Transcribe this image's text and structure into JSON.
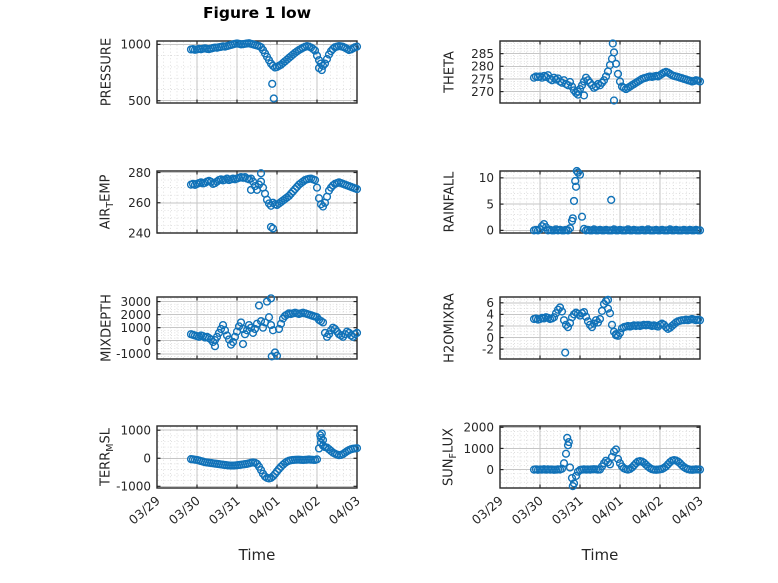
{
  "figure": {
    "title": "Figure 1 low",
    "xlabel": "Time",
    "marker_color": "#1172b8",
    "frame_color": "#262626",
    "text_color": "#262626",
    "grid_major_color": "#c6c6c6",
    "grid_minor_color": "#d2d2d2",
    "background": "#ffffff",
    "x_minor_per_day": 6
  },
  "x_axis": {
    "tick_labels": [
      "03/29",
      "03/30",
      "03/31",
      "04/01",
      "04/02",
      "04/03"
    ],
    "range_days": [
      0,
      5
    ]
  },
  "chart_data": [
    {
      "id": "pressure",
      "type": "scatter",
      "ylabel": "PRESSURE",
      "ylabel_parts": [
        {
          "text": "PRESSURE",
          "sub": false
        }
      ],
      "ylim": [
        480,
        1030
      ],
      "yticks": [
        500,
        1000
      ],
      "y_minor_step": 100,
      "x_start": 0.85,
      "x_step": 0.05,
      "y": [
        955,
        958,
        952,
        956,
        960,
        957,
        962,
        965,
        960,
        958,
        963,
        968,
        972,
        970,
        975,
        978,
        982,
        980,
        985,
        990,
        995,
        1000,
        1005,
        1008,
        1005,
        1000,
        1002,
        1005,
        1008,
        1010,
        1005,
        1000,
        995,
        990,
        985,
        975,
        950,
        920,
        890,
        860,
        830,
        810,
        795,
        800,
        810,
        820,
        835,
        850,
        865,
        880,
        895,
        910,
        925,
        938,
        950,
        960,
        970,
        978,
        985,
        980,
        972,
        960,
        945,
        900,
        860,
        830,
        810,
        830,
        870,
        910,
        940,
        960,
        975,
        980,
        985,
        982,
        978,
        970,
        960,
        950,
        955,
        965,
        975,
        980
      ],
      "extra_points": [
        [
          2.88,
          650
        ],
        [
          2.92,
          520
        ],
        [
          4.05,
          790
        ],
        [
          4.12,
          772
        ]
      ]
    },
    {
      "id": "theta",
      "type": "scatter",
      "ylabel": "THETA",
      "ylabel_parts": [
        {
          "text": "THETA",
          "sub": false
        }
      ],
      "ylim": [
        265.5,
        290
      ],
      "yticks": [
        270,
        275,
        280,
        285
      ],
      "y_minor_step": 1,
      "x_start": 0.85,
      "x_step": 0.05,
      "y": [
        275.5,
        276,
        275.8,
        276,
        275.5,
        276.2,
        275.8,
        276.5,
        275,
        274.5,
        275.5,
        274.8,
        275.2,
        274,
        273.5,
        274.5,
        273,
        272.5,
        273.8,
        272,
        270.5,
        269.5,
        270,
        271,
        272.5,
        274,
        275.5,
        274.5,
        273.5,
        272.5,
        271.5,
        272,
        273,
        272.5,
        273.5,
        274.5,
        276,
        278,
        280.5,
        283,
        285.5,
        281,
        277,
        274,
        272,
        271.5,
        271,
        271.5,
        272,
        272.5,
        273,
        273.5,
        274,
        274.5,
        275,
        275.3,
        275.5,
        275.8,
        276,
        275.8,
        276,
        276.2,
        276,
        276.5,
        277,
        277.5,
        277.8,
        277.5,
        277,
        276.5,
        276.2,
        276,
        275.8,
        275.5,
        275.3,
        275,
        274.8,
        274.5,
        274.3,
        274,
        274.2,
        274.5,
        274.3,
        274
      ],
      "extra_points": [
        [
          2.82,
          289
        ],
        [
          2.85,
          266.5
        ],
        [
          2.1,
          268.5
        ],
        [
          1.95,
          268.8
        ]
      ]
    },
    {
      "id": "air-temp",
      "type": "scatter",
      "ylabel": "AIR_TEMP",
      "ylabel_parts": [
        {
          "text": "AIR",
          "sub": false
        },
        {
          "text": "T",
          "sub": true
        },
        {
          "text": "EMP",
          "sub": false
        }
      ],
      "ylim": [
        240,
        281
      ],
      "yticks": [
        240,
        260,
        280
      ],
      "y_minor_step": 5,
      "x_start": 0.85,
      "x_step": 0.05,
      "y": [
        272,
        272.5,
        271.8,
        272.5,
        273,
        273.5,
        272.8,
        273.2,
        274,
        274.5,
        273.8,
        272.5,
        273,
        274,
        275,
        275.5,
        274.8,
        275.2,
        276,
        275,
        275.5,
        276,
        275.5,
        276,
        276.5,
        277,
        276.5,
        277,
        276,
        275.5,
        276,
        274,
        271,
        268.5,
        272,
        274,
        270,
        266,
        262,
        259.5,
        258,
        260,
        259,
        258.5,
        259.5,
        260.5,
        261.5,
        262.5,
        263.5,
        264.5,
        266,
        267.5,
        269,
        270.5,
        272,
        273,
        274,
        275,
        275.5,
        275.8,
        276,
        275.5,
        275,
        270,
        263,
        259,
        257.5,
        260,
        264,
        268,
        270,
        271.5,
        272.5,
        273,
        273.5,
        273,
        272.5,
        272,
        271.5,
        271,
        270.5,
        270,
        269.5,
        269
      ],
      "extra_points": [
        [
          2.85,
          244
        ],
        [
          2.9,
          243
        ],
        [
          2.6,
          279.5
        ],
        [
          2.35,
          268.5
        ]
      ]
    },
    {
      "id": "rainfall",
      "type": "scatter",
      "ylabel": "RAINFALL",
      "ylabel_parts": [
        {
          "text": "RAINFALL",
          "sub": false
        }
      ],
      "ylim": [
        -0.5,
        11.3
      ],
      "yticks": [
        0,
        5,
        10
      ],
      "y_minor_step": 1,
      "x_start": 0.85,
      "x_step": 0.05,
      "y": [
        0,
        0.1,
        0,
        0.2,
        0.8,
        1.2,
        0.6,
        0,
        0.1,
        0,
        0,
        0.2,
        0,
        0.1,
        0,
        0,
        0.1,
        0,
        0.4,
        1.8,
        5.6,
        8.3,
        11.0,
        10.6,
        2.6,
        0.3,
        0,
        0.1,
        0,
        0,
        0.2,
        0,
        0,
        0.1,
        0,
        0,
        0.1,
        0,
        0,
        0,
        0.2,
        0,
        0,
        0.1,
        0,
        0,
        0,
        0.2,
        0,
        0,
        0.1,
        0,
        0,
        0,
        0.1,
        0,
        0,
        0.2,
        0,
        0,
        0,
        0.1,
        0,
        0,
        0.1,
        0,
        0,
        0,
        0.2,
        0,
        0,
        0.1,
        0,
        0,
        0,
        0.1,
        0,
        0,
        0.1,
        0,
        0,
        0.1,
        0,
        0
      ],
      "extra_points": [
        [
          1.88,
          9.4
        ],
        [
          1.92,
          11.3
        ],
        [
          2.78,
          5.8
        ],
        [
          1.82,
          2.3
        ]
      ]
    },
    {
      "id": "mixdepth",
      "type": "scatter",
      "ylabel": "MIXDEPTH",
      "ylabel_parts": [
        {
          "text": "MIXDEPTH",
          "sub": false
        }
      ],
      "ylim": [
        -1400,
        3350
      ],
      "yticks": [
        -1000,
        0,
        1000,
        2000,
        3000
      ],
      "y_minor_step": 200,
      "x_start": 0.85,
      "x_step": 0.05,
      "y": [
        500,
        450,
        400,
        350,
        300,
        400,
        350,
        250,
        300,
        200,
        100,
        -100,
        50,
        300,
        600,
        900,
        1200,
        800,
        400,
        100,
        -300,
        -100,
        300,
        700,
        1100,
        1400,
        900,
        500,
        800,
        1200,
        1000,
        600,
        900,
        1300,
        2700,
        1500,
        1000,
        1400,
        3000,
        1800,
        1200,
        800,
        -900,
        -1150,
        900,
        1300,
        1700,
        1900,
        2000,
        2100,
        2050,
        2100,
        2150,
        2100,
        2050,
        2100,
        2150,
        2100,
        2050,
        2000,
        1950,
        1900,
        1850,
        1800,
        1600,
        1500,
        1400,
        600,
        300,
        500,
        800,
        1000,
        900,
        700,
        500,
        400,
        300,
        500,
        700,
        600,
        400,
        300,
        500,
        600
      ],
      "extra_points": [
        [
          2.85,
          3250
        ],
        [
          1.45,
          -420
        ],
        [
          2.15,
          -250
        ],
        [
          2.87,
          -1200
        ]
      ]
    },
    {
      "id": "h2omixra",
      "type": "scatter",
      "ylabel": "H2OMIXRA",
      "ylabel_parts": [
        {
          "text": "H2OMIXRA",
          "sub": false
        }
      ],
      "ylim": [
        -3.7,
        7.0
      ],
      "yticks": [
        -2,
        0,
        2,
        4,
        6
      ],
      "y_minor_step": 0.5,
      "x_start": 0.85,
      "x_step": 0.05,
      "y": [
        3.2,
        3.3,
        3.1,
        3.2,
        3.4,
        3.3,
        3.5,
        3.4,
        3.2,
        3.3,
        3.5,
        4.2,
        4.8,
        5.2,
        4.5,
        3.0,
        2.2,
        1.8,
        2.5,
        3.5,
        4.0,
        4.3,
        4.1,
        3.8,
        4.2,
        4.4,
        3.6,
        2.8,
        2.2,
        1.8,
        2.4,
        3.0,
        2.6,
        3.2,
        4.6,
        5.8,
        6.3,
        5.0,
        4.2,
        2.2,
        1.0,
        0.6,
        0.3,
        0.8,
        1.6,
        1.8,
        1.9,
        2.0,
        1.9,
        2.0,
        2.1,
        2.0,
        2.1,
        2.0,
        2.1,
        2.2,
        2.1,
        2.2,
        2.1,
        2.0,
        2.1,
        2.0,
        1.9,
        2.2,
        2.4,
        2.2,
        1.8,
        1.5,
        1.7,
        2.0,
        2.3,
        2.6,
        2.8,
        2.9,
        3.0,
        3.0,
        3.1,
        3.0,
        3.1,
        3.2,
        3.1,
        3.0,
        3.1,
        3.0
      ],
      "extra_points": [
        [
          1.63,
          -2.6
        ],
        [
          2.7,
          6.5
        ],
        [
          2.9,
          0.4
        ]
      ]
    },
    {
      "id": "terr-msl",
      "type": "scatter",
      "ylabel": "TERR_MSL",
      "ylabel_parts": [
        {
          "text": "TERR",
          "sub": false
        },
        {
          "text": "M",
          "sub": true
        },
        {
          "text": "SL",
          "sub": false
        }
      ],
      "ylim": [
        -1060,
        1150
      ],
      "yticks": [
        -1000,
        0,
        1000
      ],
      "y_minor_step": 200,
      "x_start": 0.85,
      "x_step": 0.05,
      "y": [
        -30,
        -40,
        -50,
        -60,
        -80,
        -100,
        -120,
        -140,
        -150,
        -160,
        -170,
        -180,
        -190,
        -200,
        -210,
        -220,
        -230,
        -240,
        -250,
        -255,
        -260,
        -260,
        -255,
        -250,
        -240,
        -230,
        -220,
        -210,
        -200,
        -180,
        -160,
        -150,
        -160,
        -200,
        -300,
        -420,
        -550,
        -650,
        -700,
        -720,
        -700,
        -640,
        -560,
        -470,
        -380,
        -300,
        -230,
        -170,
        -120,
        -90,
        -70,
        -60,
        -55,
        -50,
        -50,
        -55,
        -60,
        -55,
        -50,
        -45,
        -50,
        -55,
        -60,
        -40,
        350,
        550,
        450,
        400,
        380,
        320,
        260,
        200,
        160,
        130,
        110,
        120,
        150,
        200,
        250,
        290,
        320,
        340,
        350,
        360
      ],
      "extra_points": [
        [
          4.08,
          820
        ],
        [
          4.12,
          880
        ],
        [
          4.1,
          720
        ],
        [
          4.15,
          650
        ]
      ]
    },
    {
      "id": "sun-flux",
      "type": "scatter",
      "ylabel": "SUN_FLUX",
      "ylabel_parts": [
        {
          "text": "SUN",
          "sub": false
        },
        {
          "text": "F",
          "sub": true
        },
        {
          "text": "LUX",
          "sub": false
        }
      ],
      "ylim": [
        -870,
        2060
      ],
      "yticks": [
        0,
        1000,
        2000
      ],
      "y_minor_step": 200,
      "x_start": 0.85,
      "x_step": 0.05,
      "y": [
        0,
        10,
        -10,
        5,
        0,
        15,
        -5,
        10,
        0,
        5,
        -10,
        0,
        10,
        5,
        40,
        300,
        750,
        1150,
        100,
        -400,
        -650,
        -300,
        -100,
        -20,
        0,
        10,
        0,
        5,
        0,
        10,
        20,
        10,
        0,
        5,
        150,
        300,
        420,
        350,
        250,
        600,
        850,
        950,
        500,
        300,
        150,
        60,
        20,
        0,
        30,
        100,
        200,
        300,
        380,
        400,
        380,
        320,
        230,
        140,
        70,
        20,
        0,
        -10,
        0,
        10,
        30,
        80,
        150,
        250,
        350,
        420,
        450,
        430,
        380,
        300,
        200,
        120,
        60,
        20,
        0,
        -10,
        0,
        10,
        5,
        0
      ],
      "extra_points": [
        [
          1.68,
          1500
        ],
        [
          1.82,
          -780
        ],
        [
          1.72,
          1300
        ]
      ]
    }
  ]
}
